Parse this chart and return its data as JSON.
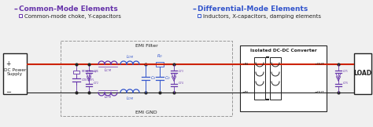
{
  "bg_color": "#f0f0f0",
  "title_cm": "Common-Mode Elements",
  "title_dm": "Differential-Mode Elements",
  "subtitle_cm": "Common-mode choke, Y-capacitors",
  "subtitle_dm": "Inductors, X-capacitors, damping elements",
  "color_purple": "#6633AA",
  "color_blue": "#3355CC",
  "color_red": "#CC2200",
  "color_dark": "#222222",
  "color_gray": "#999999",
  "emi_filter_label": "EMI Filter",
  "emi_gnd_label": "EMI GND",
  "converter_label": "Isolated DC-DC Converter",
  "ps_label": "DC Power\nSupply",
  "load_label": "LOAD",
  "fig_w": 4.74,
  "fig_h": 1.62,
  "dpi": 100
}
